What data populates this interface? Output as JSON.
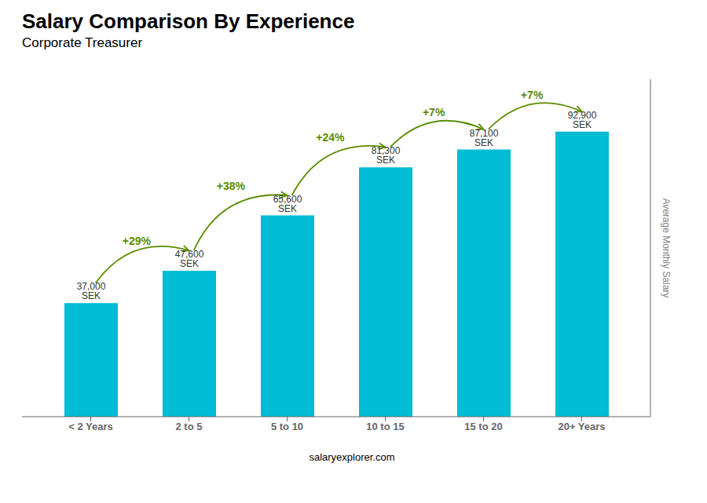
{
  "chart_data": {
    "type": "bar",
    "title": "Salary Comparison By Experience",
    "subtitle": "Corporate Treasurer",
    "categories": [
      "< 2 Years",
      "2 to 5",
      "5 to 10",
      "10 to 15",
      "15 to 20",
      "20+ Years"
    ],
    "values": [
      37000,
      47600,
      65600,
      81300,
      87100,
      92900
    ],
    "value_labels": [
      "37,000 SEK",
      "47,600 SEK",
      "65,600 SEK",
      "81,300 SEK",
      "87,100 SEK",
      "92,900 SEK"
    ],
    "data_labels": true,
    "color": "#00bcd4",
    "ylim": [
      0,
      110000
    ],
    "tick_labels": "x",
    "ylabel": "Average Monthly Salary",
    "annotations": [
      {
        "text": "+29%",
        "from": "< 2 Years",
        "to": "2 to 5",
        "color": "#5b8c00"
      },
      {
        "text": "+38%",
        "from": "2 to 5",
        "to": "5 to 10",
        "color": "#5b8c00"
      },
      {
        "text": "+24%",
        "from": "5 to 10",
        "to": "10 to 15",
        "color": "#5b8c00"
      },
      {
        "text": "+7%",
        "from": "10 to 15",
        "to": "15 to 20",
        "color": "#5b8c00"
      },
      {
        "text": "+7%",
        "from": "15 to 20",
        "to": "20+ Years",
        "color": "#5b8c00"
      }
    ],
    "footer": "salaryexplorer.com"
  }
}
